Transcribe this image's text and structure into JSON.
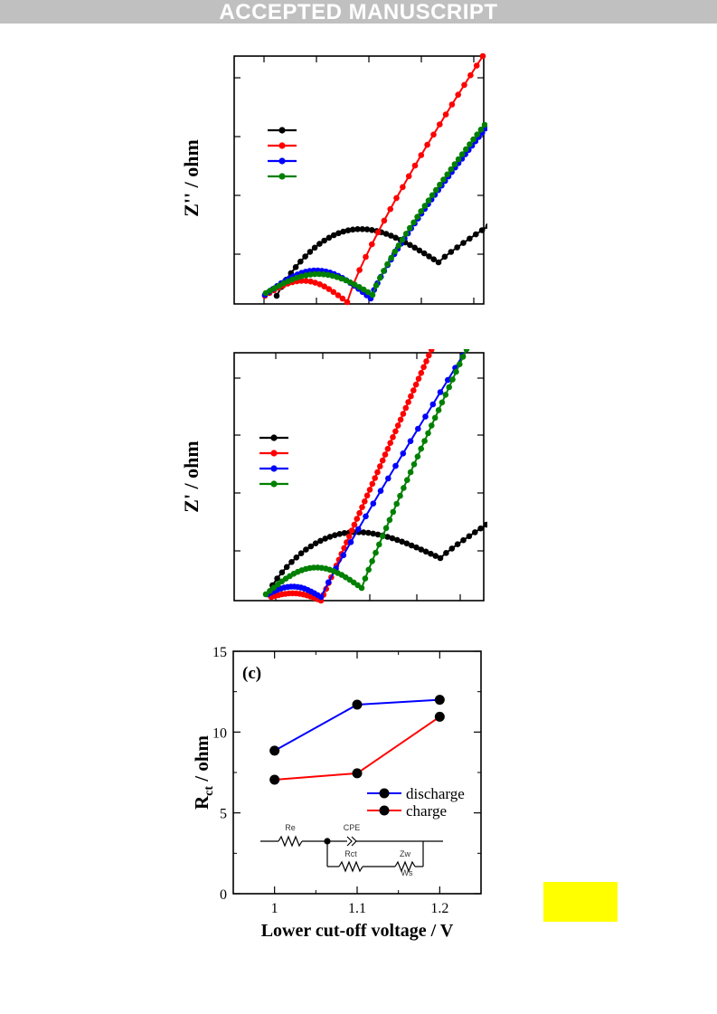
{
  "banner": {
    "text": "ACCEPTED MANUSCRIPT"
  },
  "colors": {
    "black": "#000000",
    "red": "#ff0000",
    "blue": "#0000ff",
    "green": "#008000",
    "highlight": "#ffff00"
  },
  "chart_data": [
    {
      "type": "line",
      "panel": "a",
      "title": "",
      "xlabel": "",
      "ylabel": "Z'' / ohm",
      "grid": false,
      "legend": "upper-left",
      "series": [
        {
          "name": "",
          "color": "#000000",
          "shape": "semicircle-tail",
          "c": 0.55
        },
        {
          "name": "",
          "color": "#ff0000",
          "shape": "semicircle-tail",
          "c": 0.7
        },
        {
          "name": "",
          "color": "#0000ff",
          "shape": "semicircle-tail",
          "c": 0.55
        },
        {
          "name": "",
          "color": "#008000",
          "shape": "semicircle-tail",
          "c": 0.55
        }
      ]
    },
    {
      "type": "line",
      "panel": "b",
      "title": "",
      "xlabel": "",
      "ylabel": "Z' / ohm",
      "grid": false,
      "legend": "upper-left",
      "series": [
        {
          "name": "",
          "color": "#000000",
          "shape": "semicircle-tail"
        },
        {
          "name": "",
          "color": "#ff0000",
          "shape": "semicircle-tail"
        },
        {
          "name": "",
          "color": "#0000ff",
          "shape": "semicircle-tail"
        },
        {
          "name": "",
          "color": "#008000",
          "shape": "semicircle-tail"
        }
      ]
    },
    {
      "type": "line",
      "panel": "c",
      "panel_label": "(c)",
      "title": "",
      "xlabel": "Lower cut-off voltage / V",
      "ylabel_main": "R",
      "ylabel_sub": "ct",
      "ylabel_rest": " / ohm",
      "xlim": [
        0.95,
        1.25
      ],
      "ylim": [
        0,
        15
      ],
      "xticks": [
        1,
        1.1,
        1.2
      ],
      "xtick_labels": [
        "1",
        "1.1",
        "1.2"
      ],
      "yticks": [
        0,
        5,
        10,
        15
      ],
      "ytick_labels": [
        "0",
        "5",
        "10",
        "15"
      ],
      "grid": false,
      "legend": "lower-right",
      "series": [
        {
          "name": "discharge",
          "color": "#0000ff",
          "x": [
            1,
            1.1,
            1.2
          ],
          "y": [
            8.85,
            11.7,
            12.0
          ]
        },
        {
          "name": "charge",
          "color": "#ff0000",
          "x": [
            1,
            1.1,
            1.2
          ],
          "y": [
            7.05,
            7.45,
            10.95
          ]
        }
      ],
      "circuit": {
        "labels": [
          "Re",
          "CPE",
          "Rct",
          "Zw",
          "Ws"
        ]
      }
    }
  ]
}
